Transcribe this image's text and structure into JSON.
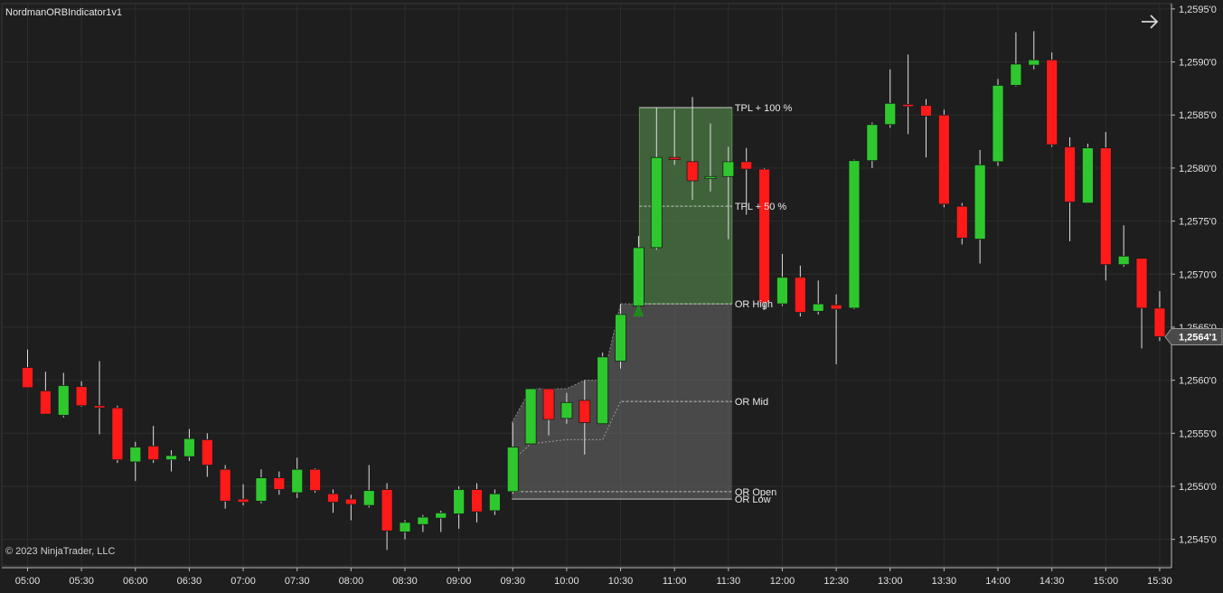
{
  "indicator_title": "NordmanORBIndicator1v1",
  "copyright": "© 2023 NinjaTrader, LLC",
  "current_price_label": "1,2564'1",
  "colors": {
    "background": "#1e1e1e",
    "grid": "#2d2d2d",
    "up": "#2ec82e",
    "down": "#ff1a1a",
    "wick": "#e0e0e0",
    "axis_text": "#e0e0e0",
    "or_box": "#6e6e6e",
    "target_box": "#4c7a44",
    "signal": "#1f8a1f"
  },
  "icons": {
    "navigate": "arrow-right-icon",
    "signal": "up-triangle-icon"
  },
  "chart_data": {
    "type": "candlestick",
    "ylim": [
      1.25425,
      1.25955
    ],
    "y_ticks": [
      {
        "value": 1.2545,
        "label": "1,2545'0"
      },
      {
        "value": 1.255,
        "label": "1,2550'0"
      },
      {
        "value": 1.2555,
        "label": "1,2555'0"
      },
      {
        "value": 1.256,
        "label": "1,2560'0"
      },
      {
        "value": 1.2565,
        "label": "1,2565'0"
      },
      {
        "value": 1.257,
        "label": "1,2570'0"
      },
      {
        "value": 1.2575,
        "label": "1,2575'0"
      },
      {
        "value": 1.258,
        "label": "1,2580'0"
      },
      {
        "value": 1.2585,
        "label": "1,2585'0"
      },
      {
        "value": 1.259,
        "label": "1,2590'0"
      },
      {
        "value": 1.2595,
        "label": "1,2595'0"
      }
    ],
    "x_ticks": [
      {
        "bar": 0,
        "label": "05:00"
      },
      {
        "bar": 3,
        "label": "05:30"
      },
      {
        "bar": 6,
        "label": "06:00"
      },
      {
        "bar": 9,
        "label": "06:30"
      },
      {
        "bar": 12,
        "label": "07:00"
      },
      {
        "bar": 15,
        "label": "07:30"
      },
      {
        "bar": 18,
        "label": "08:00"
      },
      {
        "bar": 21,
        "label": "08:30"
      },
      {
        "bar": 24,
        "label": "09:00"
      },
      {
        "bar": 27,
        "label": "09:30"
      },
      {
        "bar": 30,
        "label": "10:00"
      },
      {
        "bar": 33,
        "label": "10:30"
      },
      {
        "bar": 36,
        "label": "11:00"
      },
      {
        "bar": 39,
        "label": "11:30"
      },
      {
        "bar": 42,
        "label": "12:00"
      },
      {
        "bar": 45,
        "label": "12:30"
      },
      {
        "bar": 48,
        "label": "13:00"
      },
      {
        "bar": 51,
        "label": "13:30"
      },
      {
        "bar": 54,
        "label": "14:00"
      },
      {
        "bar": 57,
        "label": "14:30"
      },
      {
        "bar": 60,
        "label": "15:00"
      },
      {
        "bar": 63,
        "label": "15:30"
      }
    ],
    "candles": [
      {
        "o": 1.25612,
        "h": 1.25629,
        "l": 1.25597,
        "c": 1.25593
      },
      {
        "o": 1.2559,
        "h": 1.25608,
        "l": 1.2557,
        "c": 1.25568
      },
      {
        "o": 1.25567,
        "h": 1.25607,
        "l": 1.25565,
        "c": 1.25595
      },
      {
        "o": 1.25594,
        "h": 1.25599,
        "l": 1.25575,
        "c": 1.25576
      },
      {
        "o": 1.25576,
        "h": 1.25618,
        "l": 1.25549,
        "c": 1.25574
      },
      {
        "o": 1.25574,
        "h": 1.25576,
        "l": 1.25522,
        "c": 1.25525
      },
      {
        "o": 1.25523,
        "h": 1.25542,
        "l": 1.25505,
        "c": 1.25537
      },
      {
        "o": 1.25538,
        "h": 1.25557,
        "l": 1.25522,
        "c": 1.25525
      },
      {
        "o": 1.25525,
        "h": 1.25534,
        "l": 1.25514,
        "c": 1.25529
      },
      {
        "o": 1.25528,
        "h": 1.25554,
        "l": 1.25524,
        "c": 1.25545
      },
      {
        "o": 1.25544,
        "h": 1.2555,
        "l": 1.25509,
        "c": 1.2552
      },
      {
        "o": 1.25516,
        "h": 1.2552,
        "l": 1.25479,
        "c": 1.25486
      },
      {
        "o": 1.25488,
        "h": 1.25502,
        "l": 1.25482,
        "c": 1.25485
      },
      {
        "o": 1.25486,
        "h": 1.25516,
        "l": 1.25484,
        "c": 1.25508
      },
      {
        "o": 1.25508,
        "h": 1.25514,
        "l": 1.25492,
        "c": 1.25497
      },
      {
        "o": 1.25494,
        "h": 1.25527,
        "l": 1.25489,
        "c": 1.25516
      },
      {
        "o": 1.25516,
        "h": 1.25517,
        "l": 1.25494,
        "c": 1.25496
      },
      {
        "o": 1.25493,
        "h": 1.25497,
        "l": 1.25475,
        "c": 1.25485
      },
      {
        "o": 1.25488,
        "h": 1.25492,
        "l": 1.25468,
        "c": 1.25483
      },
      {
        "o": 1.25482,
        "h": 1.2552,
        "l": 1.2548,
        "c": 1.25496
      },
      {
        "o": 1.25497,
        "h": 1.25503,
        "l": 1.2544,
        "c": 1.25458
      },
      {
        "o": 1.25457,
        "h": 1.25468,
        "l": 1.2545,
        "c": 1.25466
      },
      {
        "o": 1.25464,
        "h": 1.25473,
        "l": 1.25457,
        "c": 1.25471
      },
      {
        "o": 1.2547,
        "h": 1.25477,
        "l": 1.25457,
        "c": 1.25475
      },
      {
        "o": 1.25474,
        "h": 1.255,
        "l": 1.2546,
        "c": 1.25497
      },
      {
        "o": 1.25497,
        "h": 1.25503,
        "l": 1.25466,
        "c": 1.25476
      },
      {
        "o": 1.25477,
        "h": 1.25497,
        "l": 1.25473,
        "c": 1.25493
      },
      {
        "o": 1.25495,
        "h": 1.2556,
        "l": 1.25493,
        "c": 1.25537
      },
      {
        "o": 1.2554,
        "h": 1.25592,
        "l": 1.2554,
        "c": 1.25592
      },
      {
        "o": 1.25592,
        "h": 1.25591,
        "l": 1.25548,
        "c": 1.25563
      },
      {
        "o": 1.25564,
        "h": 1.25588,
        "l": 1.25559,
        "c": 1.25579
      },
      {
        "o": 1.25581,
        "h": 1.256,
        "l": 1.2553,
        "c": 1.2556
      },
      {
        "o": 1.25559,
        "h": 1.25626,
        "l": 1.25559,
        "c": 1.25622
      },
      {
        "o": 1.25618,
        "h": 1.25672,
        "l": 1.25611,
        "c": 1.25662
      },
      {
        "o": 1.2567,
        "h": 1.25736,
        "l": 1.2566,
        "c": 1.25725
      },
      {
        "o": 1.25725,
        "h": 1.25857,
        "l": 1.25723,
        "c": 1.2581
      },
      {
        "o": 1.2581,
        "h": 1.25855,
        "l": 1.25803,
        "c": 1.25808
      },
      {
        "o": 1.25806,
        "h": 1.25867,
        "l": 1.2577,
        "c": 1.25788
      },
      {
        "o": 1.2579,
        "h": 1.25842,
        "l": 1.25778,
        "c": 1.25792
      },
      {
        "o": 1.25792,
        "h": 1.2582,
        "l": 1.25733,
        "c": 1.25806
      },
      {
        "o": 1.25806,
        "h": 1.25819,
        "l": 1.25756,
        "c": 1.25799
      },
      {
        "o": 1.25799,
        "h": 1.258,
        "l": 1.25667,
        "c": 1.25673
      },
      {
        "o": 1.25672,
        "h": 1.25719,
        "l": 1.2567,
        "c": 1.25697
      },
      {
        "o": 1.25697,
        "h": 1.25708,
        "l": 1.2566,
        "c": 1.25664
      },
      {
        "o": 1.25665,
        "h": 1.25694,
        "l": 1.25662,
        "c": 1.25672
      },
      {
        "o": 1.25671,
        "h": 1.25681,
        "l": 1.25615,
        "c": 1.25667
      },
      {
        "o": 1.25668,
        "h": 1.25808,
        "l": 1.25667,
        "c": 1.25807
      },
      {
        "o": 1.25807,
        "h": 1.25843,
        "l": 1.258,
        "c": 1.25841
      },
      {
        "o": 1.25841,
        "h": 1.25893,
        "l": 1.25838,
        "c": 1.25861
      },
      {
        "o": 1.2586,
        "h": 1.25907,
        "l": 1.25832,
        "c": 1.25858
      },
      {
        "o": 1.25859,
        "h": 1.25865,
        "l": 1.2581,
        "c": 1.25849
      },
      {
        "o": 1.2585,
        "h": 1.25855,
        "l": 1.25763,
        "c": 1.25766
      },
      {
        "o": 1.25764,
        "h": 1.25767,
        "l": 1.25728,
        "c": 1.25734
      },
      {
        "o": 1.25733,
        "h": 1.25817,
        "l": 1.2571,
        "c": 1.25803
      },
      {
        "o": 1.25806,
        "h": 1.25884,
        "l": 1.25802,
        "c": 1.25878
      },
      {
        "o": 1.25878,
        "h": 1.25928,
        "l": 1.25877,
        "c": 1.25898
      },
      {
        "o": 1.25897,
        "h": 1.25929,
        "l": 1.25893,
        "c": 1.25902
      },
      {
        "o": 1.25902,
        "h": 1.25909,
        "l": 1.2582,
        "c": 1.25822
      },
      {
        "o": 1.2582,
        "h": 1.25829,
        "l": 1.25731,
        "c": 1.25768
      },
      {
        "o": 1.25767,
        "h": 1.25823,
        "l": 1.25767,
        "c": 1.25819
      },
      {
        "o": 1.25819,
        "h": 1.25834,
        "l": 1.25694,
        "c": 1.25709
      },
      {
        "o": 1.25709,
        "h": 1.25746,
        "l": 1.25707,
        "c": 1.25717
      },
      {
        "o": 1.25715,
        "h": 1.25715,
        "l": 1.2563,
        "c": 1.25668
      },
      {
        "o": 1.25668,
        "h": 1.25684,
        "l": 1.25637,
        "c": 1.25641
      }
    ],
    "or_box": {
      "start_bar": 27,
      "end_bar": 39,
      "high": 1.25672,
      "low": 1.25488
    },
    "target_box": {
      "start_bar": 34,
      "end_bar": 39,
      "top": 1.25857,
      "bottom": 1.25672
    },
    "or_band_upper": [
      {
        "bar": 27,
        "value": 1.2556
      },
      {
        "bar": 28,
        "value": 1.25592
      },
      {
        "bar": 30,
        "value": 1.25592
      },
      {
        "bar": 31,
        "value": 1.256
      },
      {
        "bar": 32,
        "value": 1.256
      },
      {
        "bar": 33,
        "value": 1.25672
      }
    ],
    "or_mid_curve": [
      {
        "bar": 27,
        "value": 1.25524
      },
      {
        "bar": 28,
        "value": 1.2554
      },
      {
        "bar": 30,
        "value": 1.25544
      },
      {
        "bar": 31,
        "value": 1.25544
      },
      {
        "bar": 32,
        "value": 1.25544
      },
      {
        "bar": 33,
        "value": 1.2558
      }
    ],
    "levels": [
      {
        "label": "TPL + 100 %",
        "value": 1.25857,
        "start_bar": 34,
        "style": "solid"
      },
      {
        "label": "TPL + 50 %",
        "value": 1.25764,
        "start_bar": 34,
        "style": "dashed"
      },
      {
        "label": "OR High",
        "value": 1.25672,
        "start_bar": 34,
        "style": "dashed"
      },
      {
        "label": "OR Mid",
        "value": 1.2558,
        "start_bar": 33,
        "style": "dashed"
      },
      {
        "label": "OR Open",
        "value": 1.25495,
        "start_bar": 27,
        "style": "dashed"
      },
      {
        "label": "OR Low",
        "value": 1.25488,
        "start_bar": 27,
        "style": "solid"
      }
    ],
    "signal": {
      "bar": 34,
      "value": 1.25672,
      "type": "long-entry"
    },
    "current_price": 1.25641
  }
}
